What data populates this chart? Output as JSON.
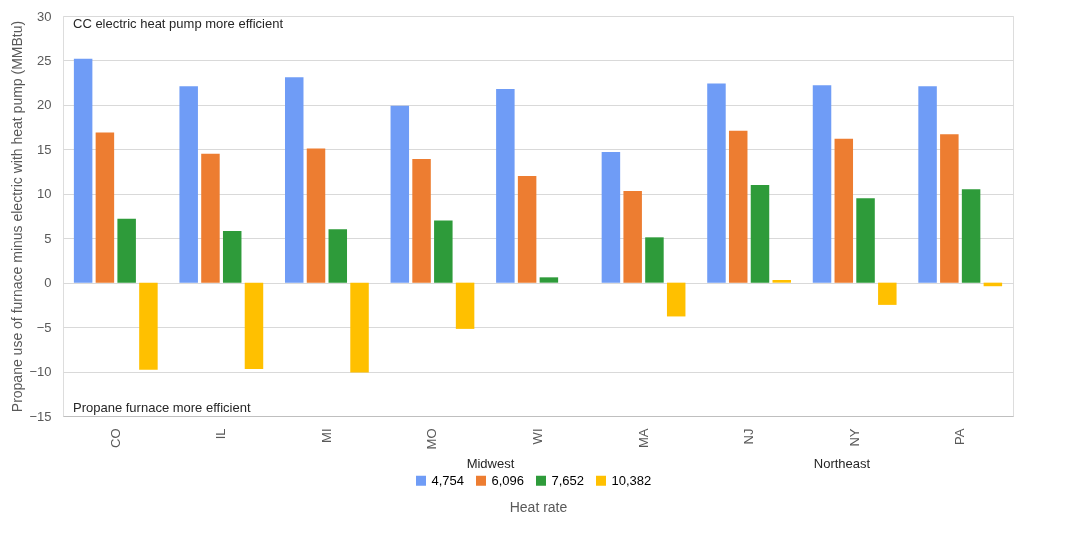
{
  "chart_data": {
    "type": "bar",
    "xlabel": "Heat rate",
    "ylabel": "Propane use of furnace minus electric with heat pump (MMBtu)",
    "categories": [
      "CO",
      "IL",
      "MI",
      "MO",
      "WI",
      "MA",
      "NJ",
      "NY",
      "PA"
    ],
    "series": [
      {
        "name": "4,754",
        "color": "#6f9cf6",
        "values": [
          25.2,
          22.1,
          23.1,
          19.9,
          21.8,
          14.7,
          22.4,
          22.2,
          22.1
        ]
      },
      {
        "name": "6,096",
        "color": "#ed7d31",
        "values": [
          16.9,
          14.5,
          15.1,
          13.9,
          12.0,
          10.3,
          17.1,
          16.2,
          16.7
        ]
      },
      {
        "name": "7,652",
        "color": "#2e9b3a",
        "values": [
          7.2,
          5.8,
          6.0,
          7.0,
          0.6,
          5.1,
          11.0,
          9.5,
          10.5
        ]
      },
      {
        "name": "10,382",
        "color": "#ffc000",
        "values": [
          -9.8,
          -9.7,
          -10.1,
          -5.2,
          null,
          -3.8,
          0.3,
          -2.5,
          -0.4
        ]
      }
    ],
    "ylim": [
      -15,
      30
    ],
    "yticks": [
      -15,
      -10,
      -5,
      0,
      5,
      10,
      15,
      20,
      25,
      30
    ],
    "grid": "y",
    "legend": "bottom",
    "annotations": [
      "CC electric heat pump more efficient",
      "Propane furnace more efficient",
      "Midwest",
      "Northeast"
    ]
  }
}
